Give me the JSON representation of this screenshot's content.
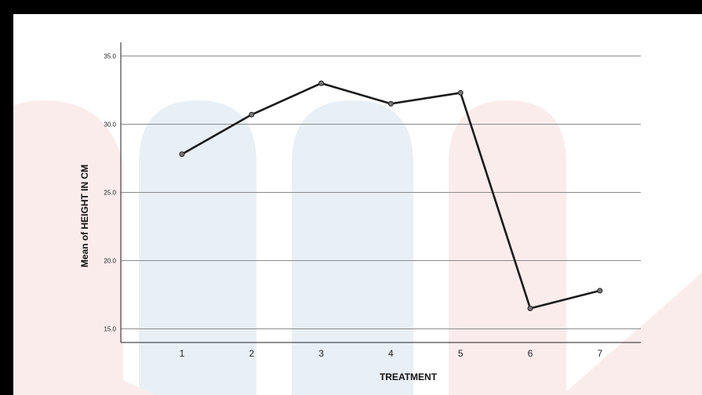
{
  "chart_data": {
    "type": "line",
    "xlabel": "TREATMENT",
    "ylabel": "Mean of HEIGHT IN CM",
    "categories": [
      "1",
      "2",
      "3",
      "4",
      "5",
      "6",
      "7"
    ],
    "values": [
      27.8,
      30.7,
      33.0,
      31.5,
      32.3,
      16.5,
      17.8
    ],
    "ylim": [
      14.0,
      36.0
    ],
    "yticks": [
      "15.0",
      "20.0",
      "25.0",
      "30.0",
      "35.0"
    ],
    "grid": true,
    "line_color": "#1a1a1a",
    "marker_color": "#777777"
  },
  "watermark": {
    "colors": {
      "blue": "#e8f0f6",
      "red": "#fbecec"
    }
  }
}
